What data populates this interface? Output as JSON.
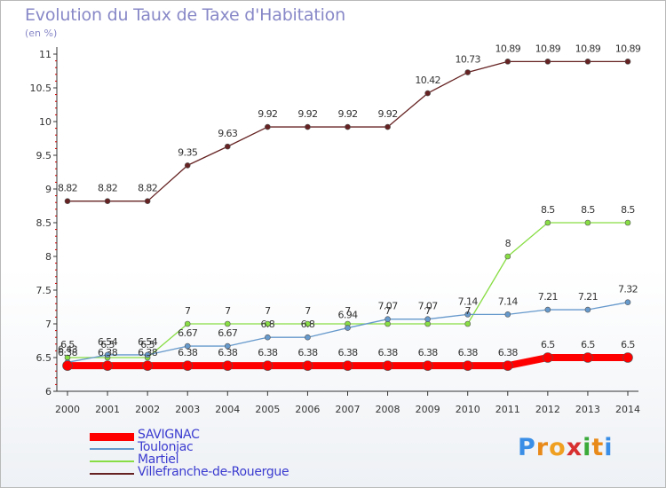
{
  "title": "Evolution du Taux de Taxe d'Habitation",
  "subtitle": "(en %)",
  "logo_text": "Proxiti",
  "colors": {
    "SAVIGNAC": "#ff0000",
    "Toulonjac": "#6699cc",
    "Martiel": "#88dd44",
    "Villefranche-de-Rouergue": "#662222",
    "axis": "#333333",
    "grid_tick": "#cc0000",
    "title": "#8888c8",
    "legend_text": "#3b3bd0"
  },
  "chart_data": {
    "type": "line",
    "title": "Evolution du Taux de Taxe d'Habitation",
    "ylabel": "(en %)",
    "xlabel": "",
    "x": [
      "2000",
      "2001",
      "2002",
      "2003",
      "2004",
      "2005",
      "2006",
      "2007",
      "2008",
      "2009",
      "2010",
      "2011",
      "2012",
      "2013",
      "2014"
    ],
    "ylim": [
      6,
      11
    ],
    "yticks": [
      "6",
      "6.5",
      "7",
      "7.5",
      "8",
      "8.5",
      "9",
      "9.5",
      "10",
      "10.5",
      "11"
    ],
    "grid": false,
    "legend_position": "bottom-left",
    "series": [
      {
        "name": "SAVIGNAC",
        "values": [
          6.38,
          6.38,
          6.38,
          6.38,
          6.38,
          6.38,
          6.38,
          6.38,
          6.38,
          6.38,
          6.38,
          6.38,
          6.5,
          6.5,
          6.5
        ],
        "labels": [
          "6.38",
          "6.38",
          "6.38",
          "6.38",
          "6.38",
          "6.38",
          "6.38",
          "6.38",
          "6.38",
          "6.38",
          "6.38",
          "6.38",
          "6.5",
          "6.5",
          "6.5"
        ]
      },
      {
        "name": "Toulonjac",
        "values": [
          6.43,
          6.54,
          6.54,
          6.67,
          6.67,
          6.8,
          6.8,
          6.94,
          7.07,
          7.07,
          7.14,
          7.14,
          7.21,
          7.21,
          7.32
        ],
        "labels": [
          "6.43",
          "6.54",
          "6.54",
          "6.67",
          "6.67",
          "6.8",
          "6.8",
          "6.94",
          "7.07",
          "7.07",
          "7.14",
          "7.14",
          "7.21",
          "7.21",
          "7.32"
        ]
      },
      {
        "name": "Martiel",
        "values": [
          6.5,
          6.5,
          6.5,
          7,
          7,
          7,
          7,
          7,
          7,
          7,
          7,
          8,
          8.5,
          8.5,
          8.5
        ],
        "labels": [
          "6.5",
          "6.5",
          "6.5",
          "7",
          "7",
          "7",
          "7",
          "7",
          "7",
          "7",
          "7",
          "8",
          "8.5",
          "8.5",
          "8.5"
        ]
      },
      {
        "name": "Villefranche-de-Rouergue",
        "values": [
          8.82,
          8.82,
          8.82,
          9.35,
          9.63,
          9.92,
          9.92,
          9.92,
          9.92,
          10.42,
          10.73,
          10.89,
          10.89,
          10.89,
          10.89
        ],
        "labels": [
          "8.82",
          "8.82",
          "8.82",
          "9.35",
          "9.63",
          "9.92",
          "9.92",
          "9.92",
          "9.92",
          "10.42",
          "10.73",
          "10.89",
          "10.89",
          "10.89",
          "10.89"
        ]
      }
    ]
  }
}
